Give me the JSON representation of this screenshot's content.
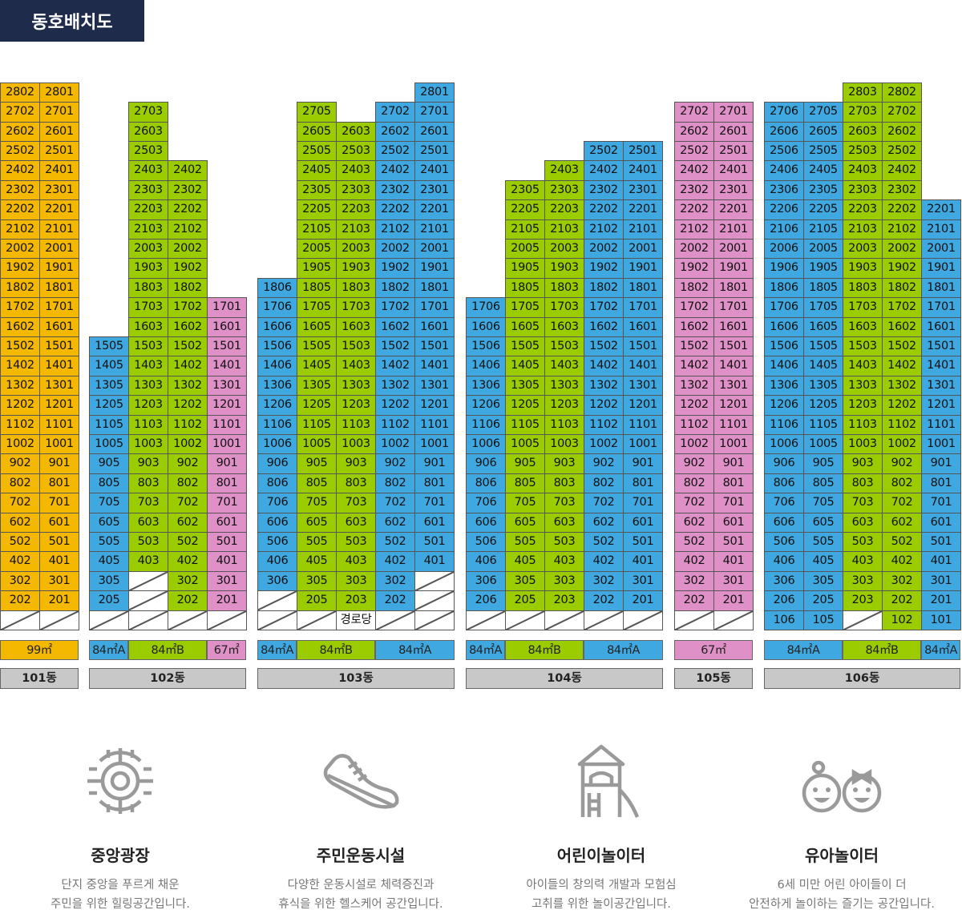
{
  "title": "동호배치도",
  "colors": {
    "99": "#f5b800",
    "84A": "#40a8e0",
    "84B": "#9acc00",
    "67": "#df90c6",
    "building": "#c8c8c8",
    "header": "#1e2b4a"
  },
  "buildings": [
    {
      "name": "101동",
      "columns": [
        {
          "type": "99",
          "units": [
            null,
            "202",
            "302",
            "402",
            "502",
            "602",
            "702",
            "802",
            "902",
            "1002",
            "1102",
            "1202",
            "1302",
            "1402",
            "1502",
            "1602",
            "1702",
            "1802",
            "1902",
            "2002",
            "2102",
            "2202",
            "2302",
            "2402",
            "2502",
            "2602",
            "2702",
            "2802"
          ]
        },
        {
          "type": "99",
          "units": [
            null,
            "201",
            "301",
            "401",
            "501",
            "601",
            "701",
            "801",
            "901",
            "1001",
            "1101",
            "1201",
            "1301",
            "1401",
            "1501",
            "1601",
            "1701",
            "1801",
            "1901",
            "2001",
            "2101",
            "2201",
            "2301",
            "2401",
            "2501",
            "2601",
            "2701",
            "2801"
          ]
        }
      ],
      "legend": [
        {
          "label": "99㎡",
          "type": "99",
          "span": 2
        }
      ]
    },
    {
      "name": "102동",
      "columns": [
        {
          "type": "84A",
          "units": [
            null,
            "205",
            "305",
            "405",
            "505",
            "605",
            "705",
            "805",
            "905",
            "1005",
            "1105",
            "1205",
            "1305",
            "1405",
            "1505"
          ]
        },
        {
          "type": "84B",
          "units": [
            null,
            null,
            null,
            "403",
            "503",
            "603",
            "703",
            "803",
            "903",
            "1003",
            "1103",
            "1203",
            "1303",
            "1403",
            "1503",
            "1603",
            "1703",
            "1803",
            "1903",
            "2003",
            "2103",
            "2203",
            "2303",
            "2403",
            "2503",
            "2603",
            "2703"
          ]
        },
        {
          "type": "84B",
          "units": [
            null,
            "202",
            "302",
            "402",
            "502",
            "602",
            "702",
            "802",
            "902",
            "1002",
            "1102",
            "1202",
            "1302",
            "1402",
            "1502",
            "1602",
            "1702",
            "1802",
            "1902",
            "2002",
            "2102",
            "2202",
            "2302",
            "2402"
          ]
        },
        {
          "type": "67",
          "units": [
            null,
            "201",
            "301",
            "401",
            "501",
            "601",
            "701",
            "801",
            "901",
            "1001",
            "1101",
            "1201",
            "1301",
            "1401",
            "1501",
            "1601",
            "1701"
          ]
        }
      ],
      "legend": [
        {
          "label": "84㎡A",
          "type": "84A",
          "span": 1
        },
        {
          "label": "84㎡B",
          "type": "84B",
          "span": 2
        },
        {
          "label": "67㎡",
          "type": "67",
          "span": 1
        }
      ]
    },
    {
      "name": "103동",
      "columns": [
        {
          "type": "84A",
          "units": [
            null,
            null,
            "306",
            "406",
            "506",
            "606",
            "706",
            "806",
            "906",
            "1006",
            "1106",
            "1206",
            "1306",
            "1406",
            "1506",
            "1606",
            "1706",
            "1806"
          ]
        },
        {
          "type": "84B",
          "units": [
            null,
            "205",
            "305",
            "405",
            "505",
            "605",
            "705",
            "805",
            "905",
            "1005",
            "1105",
            "1205",
            "1305",
            "1405",
            "1505",
            "1605",
            "1705",
            "1805",
            "1905",
            "2005",
            "2105",
            "2205",
            "2305",
            "2405",
            "2505",
            "2605",
            "2705"
          ]
        },
        {
          "type": "84B",
          "units": [
            "경로당",
            "203",
            "303",
            "403",
            "503",
            "603",
            "703",
            "803",
            "903",
            "1003",
            "1103",
            "1203",
            "1303",
            "1403",
            "1503",
            "1603",
            "1703",
            "1803",
            "1903",
            "2003",
            "2103",
            "2203",
            "2303",
            "2403",
            "2503",
            "2603"
          ]
        },
        {
          "type": "84A",
          "units": [
            null,
            "202",
            "302",
            "402",
            "502",
            "602",
            "702",
            "802",
            "902",
            "1002",
            "1102",
            "1202",
            "1302",
            "1402",
            "1502",
            "1602",
            "1702",
            "1802",
            "1902",
            "2002",
            "2102",
            "2202",
            "2302",
            "2402",
            "2502",
            "2602",
            "2702"
          ]
        },
        {
          "type": "84A",
          "units": [
            null,
            null,
            null,
            "401",
            "501",
            "601",
            "701",
            "801",
            "901",
            "1001",
            "1101",
            "1201",
            "1301",
            "1401",
            "1501",
            "1601",
            "1701",
            "1801",
            "1901",
            "2001",
            "2101",
            "2201",
            "2301",
            "2401",
            "2501",
            "2601",
            "2701",
            "2801"
          ]
        }
      ],
      "legend": [
        {
          "label": "84㎡A",
          "type": "84A",
          "span": 1
        },
        {
          "label": "84㎡B",
          "type": "84B",
          "span": 2
        },
        {
          "label": "84㎡A",
          "type": "84A",
          "span": 2
        }
      ]
    },
    {
      "name": "104동",
      "columns": [
        {
          "type": "84A",
          "units": [
            null,
            "206",
            "306",
            "406",
            "506",
            "606",
            "706",
            "806",
            "906",
            "1006",
            "1106",
            "1206",
            "1306",
            "1406",
            "1506",
            "1606",
            "1706"
          ]
        },
        {
          "type": "84B",
          "units": [
            null,
            "205",
            "305",
            "405",
            "505",
            "605",
            "705",
            "805",
            "905",
            "1005",
            "1105",
            "1205",
            "1305",
            "1405",
            "1505",
            "1605",
            "1705",
            "1805",
            "1905",
            "2005",
            "2105",
            "2205",
            "2305"
          ]
        },
        {
          "type": "84B",
          "units": [
            null,
            "203",
            "303",
            "403",
            "503",
            "603",
            "703",
            "803",
            "903",
            "1003",
            "1103",
            "1203",
            "1303",
            "1403",
            "1503",
            "1603",
            "1703",
            "1803",
            "1903",
            "2003",
            "2103",
            "2203",
            "2303",
            "2403"
          ]
        },
        {
          "type": "84A",
          "units": [
            null,
            "202",
            "302",
            "402",
            "502",
            "602",
            "702",
            "802",
            "902",
            "1002",
            "1102",
            "1202",
            "1302",
            "1402",
            "1502",
            "1602",
            "1702",
            "1802",
            "1902",
            "2002",
            "2102",
            "2202",
            "2302",
            "2402",
            "2502"
          ]
        },
        {
          "type": "84A",
          "units": [
            null,
            "201",
            "301",
            "401",
            "501",
            "601",
            "701",
            "801",
            "901",
            "1001",
            "1101",
            "1201",
            "1301",
            "1401",
            "1501",
            "1601",
            "1701",
            "1801",
            "1901",
            "2001",
            "2101",
            "2201",
            "2301",
            "2401",
            "2501"
          ]
        }
      ],
      "legend": [
        {
          "label": "84㎡A",
          "type": "84A",
          "span": 1
        },
        {
          "label": "84㎡B",
          "type": "84B",
          "span": 2
        },
        {
          "label": "84㎡A",
          "type": "84A",
          "span": 2
        }
      ]
    },
    {
      "name": "105동",
      "columns": [
        {
          "type": "67",
          "units": [
            null,
            "202",
            "302",
            "402",
            "502",
            "602",
            "702",
            "802",
            "902",
            "1002",
            "1102",
            "1202",
            "1302",
            "1402",
            "1502",
            "1602",
            "1702",
            "1802",
            "1902",
            "2002",
            "2102",
            "2202",
            "2302",
            "2402",
            "2502",
            "2602",
            "2702"
          ]
        },
        {
          "type": "67",
          "units": [
            null,
            "201",
            "301",
            "401",
            "501",
            "601",
            "701",
            "801",
            "901",
            "1001",
            "1101",
            "1201",
            "1301",
            "1401",
            "1501",
            "1601",
            "1701",
            "1801",
            "1901",
            "2001",
            "2101",
            "2201",
            "2301",
            "2401",
            "2501",
            "2601",
            "2701"
          ]
        }
      ],
      "legend": [
        {
          "label": "67㎡",
          "type": "67",
          "span": 2
        }
      ]
    },
    {
      "name": "106동",
      "columns": [
        {
          "type": "84A",
          "units": [
            "106",
            "206",
            "306",
            "406",
            "506",
            "606",
            "706",
            "806",
            "906",
            "1006",
            "1106",
            "1206",
            "1306",
            "1406",
            "1506",
            "1606",
            "1706",
            "1806",
            "1906",
            "2006",
            "2106",
            "2206",
            "2306",
            "2406",
            "2506",
            "2606",
            "2706"
          ]
        },
        {
          "type": "84A",
          "units": [
            "105",
            "205",
            "305",
            "405",
            "505",
            "605",
            "705",
            "805",
            "905",
            "1005",
            "1105",
            "1205",
            "1305",
            "1405",
            "1505",
            "1605",
            "1705",
            "1805",
            "1905",
            "2005",
            "2105",
            "2205",
            "2305",
            "2405",
            "2505",
            "2605",
            "2705"
          ]
        },
        {
          "type": "84B",
          "units": [
            null,
            "203",
            "303",
            "403",
            "503",
            "603",
            "703",
            "803",
            "903",
            "1003",
            "1103",
            "1203",
            "1303",
            "1403",
            "1503",
            "1603",
            "1703",
            "1803",
            "1903",
            "2003",
            "2103",
            "2203",
            "2303",
            "2403",
            "2503",
            "2603",
            "2703",
            "2803"
          ]
        },
        {
          "type": "84B",
          "units": [
            "102",
            "202",
            "302",
            "402",
            "502",
            "602",
            "702",
            "802",
            "902",
            "1002",
            "1102",
            "1202",
            "1302",
            "1402",
            "1502",
            "1602",
            "1702",
            "1802",
            "1902",
            "2002",
            "2102",
            "2202",
            "2302",
            "2402",
            "2502",
            "2602",
            "2702",
            "2802"
          ]
        },
        {
          "type": "84A",
          "units": [
            "101",
            "201",
            "301",
            "401",
            "501",
            "601",
            "701",
            "801",
            "901",
            "1001",
            "1101",
            "1201",
            "1301",
            "1401",
            "1501",
            "1601",
            "1701",
            "1801",
            "1901",
            "2001",
            "2101",
            "2201"
          ]
        }
      ],
      "legend": [
        {
          "label": "84㎡A",
          "type": "84A",
          "span": 2
        },
        {
          "label": "84㎡B",
          "type": "84B",
          "span": 2
        },
        {
          "label": "84㎡A",
          "type": "84A",
          "span": 1
        }
      ]
    }
  ],
  "features": [
    {
      "icon": "central-plaza-icon",
      "title": "중앙광장",
      "desc1": "단지 중앙을 푸르게 채운",
      "desc2": "주민을 위한 힐링공간입니다."
    },
    {
      "icon": "sneaker-icon",
      "title": "주민운동시설",
      "desc1": "다양한 운동시설로 체력증진과",
      "desc2": "휴식을 위한 헬스케어 공간입니다."
    },
    {
      "icon": "playground-icon",
      "title": "어린이놀이터",
      "desc1": "아이들의 창의력 개발과 모험심",
      "desc2": "고취를 위한 놀이공간입니다."
    },
    {
      "icon": "toddler-faces-icon",
      "title": "유아놀이터",
      "desc1": "6세 미만 어린 아이들이 더",
      "desc2": "안전하게 놀이하는 즐기는 공간입니다."
    }
  ]
}
